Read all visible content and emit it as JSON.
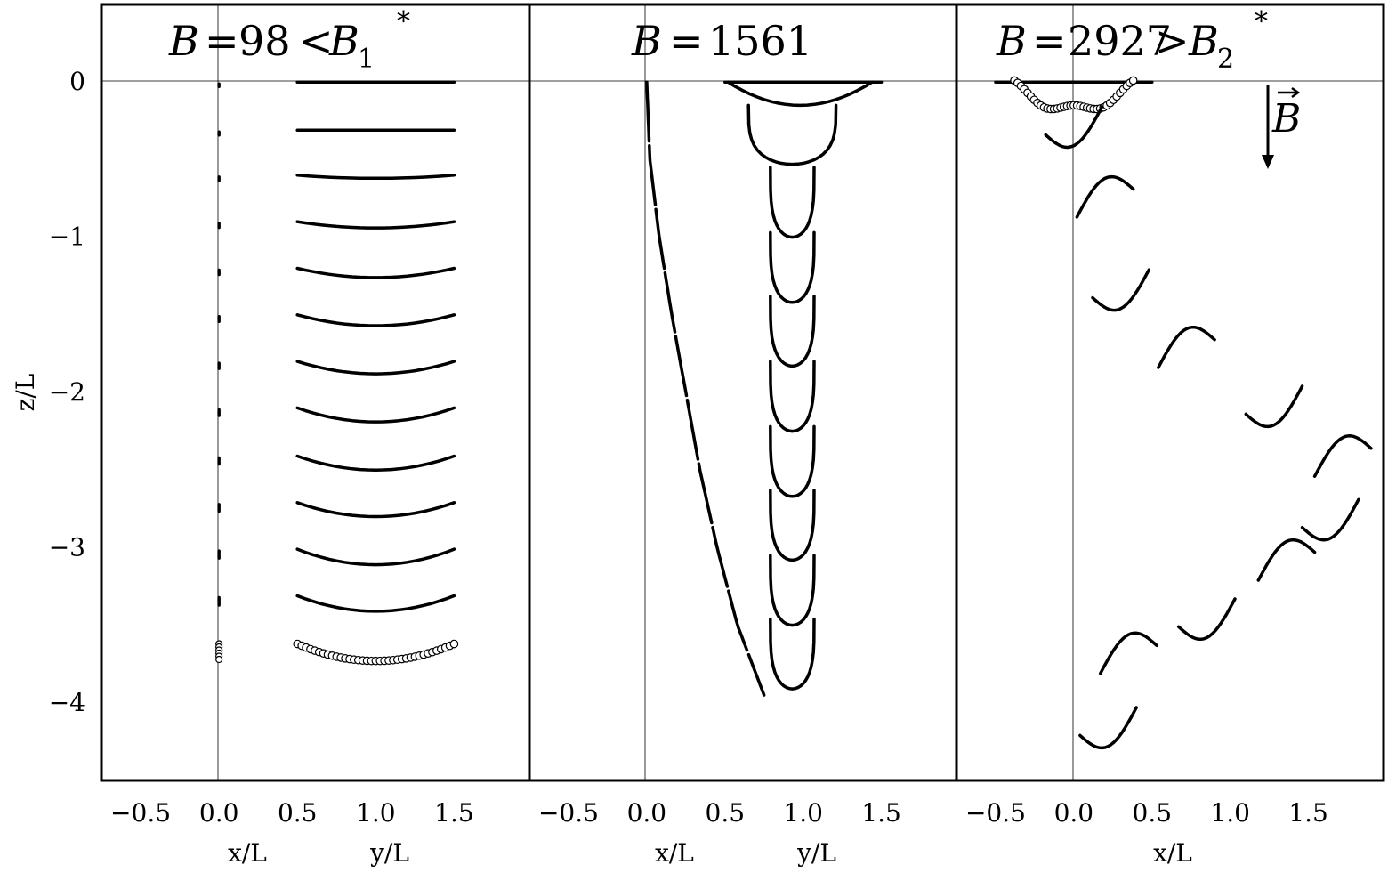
{
  "chart_data": [
    {
      "type": "line",
      "title": "B = 98 < B₁*",
      "title_parts": {
        "lhs": "B",
        "eq": "=",
        "num": "98",
        "rel": "<",
        "rhs": "B",
        "sub": "1",
        "sup": "*"
      },
      "ylabel": "z/L",
      "xlabels": [
        "x/L",
        "y/L"
      ],
      "x_ticks": [
        "−0.5",
        "0.0",
        "0.5",
        "1.0",
        "1.5"
      ],
      "y_ticks": [
        "0",
        "−1",
        "−2",
        "−3",
        "−4"
      ],
      "xlim": [
        -0.75,
        1.98
      ],
      "ylim": [
        -4.5,
        0.5
      ],
      "y_tick_values": [
        0,
        -1,
        -2,
        -3,
        -4
      ],
      "x_tick_values": [
        -0.5,
        0.0,
        0.5,
        1.0,
        1.5
      ],
      "grid": false,
      "series": [
        {
          "values": {
            "projection": "x-z",
            "x_center": 0.0,
            "z_top": 0.0,
            "z_bottom": -3.72,
            "final_state_marked_with_circles": true
          }
        },
        {
          "values": {
            "projection": "y-z",
            "y_from": 0.5,
            "y_to": 1.5,
            "snapshot_tops_z": [
              0.0,
              -0.31,
              -0.6,
              -0.9,
              -1.2,
              -1.5,
              -1.8,
              -2.1,
              -2.41,
              -2.71,
              -3.01,
              -3.31,
              -3.62
            ],
            "sag_depths": [
              0.0,
              0.0,
              0.02,
              0.04,
              0.06,
              0.07,
              0.08,
              0.09,
              0.09,
              0.09,
              0.1,
              0.1,
              0.11
            ]
          }
        }
      ]
    },
    {
      "type": "line",
      "title": "B = 1561",
      "title_parts": {
        "lhs": "B",
        "eq": "=",
        "num": "1561"
      },
      "xlabels": [
        "x/L",
        "y/L"
      ],
      "x_ticks": [
        "−0.5",
        "0.0",
        "0.5",
        "1.0",
        "1.5"
      ],
      "xlim": [
        -0.75,
        1.98
      ],
      "ylim": [
        -4.5,
        0.5
      ],
      "x_tick_values": [
        -0.5,
        0.0,
        0.5,
        1.0,
        1.5
      ],
      "grid": false,
      "series": [
        {
          "values": {
            "projection": "x-z",
            "drift_path": [
              [
                0.0,
                0.0
              ],
              [
                0.02,
                -0.5
              ],
              [
                0.08,
                -1.0
              ],
              [
                0.16,
                -1.5
              ],
              [
                0.25,
                -2.0
              ],
              [
                0.34,
                -2.5
              ],
              [
                0.45,
                -3.0
              ],
              [
                0.58,
                -3.5
              ],
              [
                0.75,
                -3.95
              ]
            ]
          }
        },
        {
          "values": {
            "projection": "y-z",
            "y_center": 0.93,
            "first_top_z": 0.0,
            "u_shape_tops_z": [
              -0.15,
              -0.55,
              -0.97,
              -1.38,
              -1.8,
              -2.22,
              -2.63,
              -3.05,
              -3.46
            ],
            "u_depth": 0.45
          }
        }
      ]
    },
    {
      "type": "line",
      "title": "B = 2927 > B₂*",
      "title_parts": {
        "lhs": "B",
        "eq": "=",
        "num": "2927",
        "rel": ">",
        "rhs": "B",
        "sub": "2",
        "sup": "*"
      },
      "xlabels": [
        "x/L"
      ],
      "x_ticks": [
        "−0.5",
        "0.0",
        "0.5",
        "1.0",
        "1.5"
      ],
      "xlim": [
        -0.75,
        1.98
      ],
      "ylim": [
        -4.5,
        0.5
      ],
      "x_tick_values": [
        -0.5,
        0.0,
        0.5,
        1.0,
        1.5
      ],
      "grid": false,
      "annotation": {
        "label": "B",
        "vector_arrow": true,
        "direction": "down"
      },
      "series": [
        {
          "values": {
            "projection": "x-z",
            "zigzag_centers": [
              [
                0.0,
                -0.25
              ],
              [
                0.2,
                -0.78
              ],
              [
                0.3,
                -1.3
              ],
              [
                0.72,
                -1.75
              ],
              [
                1.28,
                -2.05
              ],
              [
                1.72,
                -2.45
              ],
              [
                1.64,
                -2.78
              ],
              [
                1.36,
                -3.12
              ],
              [
                0.85,
                -3.42
              ],
              [
                0.35,
                -3.72
              ],
              [
                0.22,
                -4.12
              ]
            ],
            "final_state_marked_with_circles": true
          }
        }
      ]
    }
  ]
}
